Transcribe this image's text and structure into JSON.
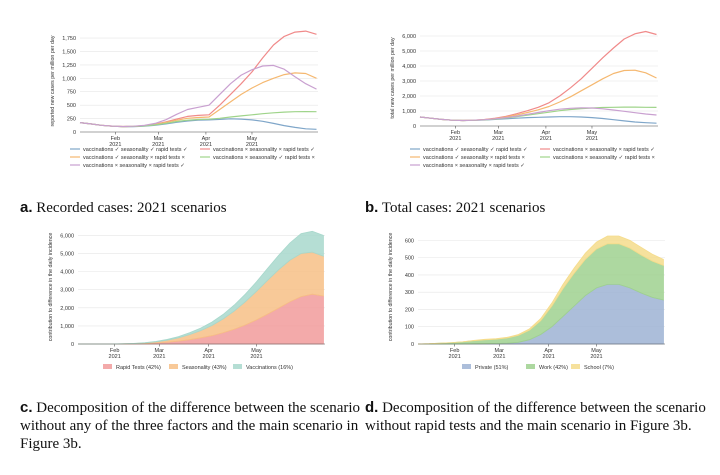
{
  "x_ticks": [
    {
      "month": "Feb",
      "year": "2021",
      "day": 31
    },
    {
      "month": "Mar",
      "year": "2021",
      "day": 59
    },
    {
      "month": "Apr",
      "year": "2021",
      "day": 90
    },
    {
      "month": "May",
      "year": "2021",
      "day": 120
    }
  ],
  "captions": {
    "a": {
      "label": "a.",
      "text": "Recorded cases: 2021 scenarios"
    },
    "b": {
      "label": "b.",
      "text": "Total cases: 2021 scenarios"
    },
    "c": {
      "label": "c.",
      "text": "Decomposition of the difference between the scenario without any of the three factors and the main scenario in Figure 3b."
    },
    "d": {
      "label": "d.",
      "text": "Decomposition of the difference between the scenario without rapid tests and the main scenario in Figure 3b."
    }
  },
  "chart_data": [
    {
      "id": "a",
      "type": "line",
      "ylabel": "reported new cases per million per day",
      "xlim": [
        8,
        163
      ],
      "ylim": [
        0,
        1900
      ],
      "yticks": [
        0,
        250,
        500,
        750,
        1000,
        1250,
        1500,
        1750
      ],
      "ytick_labels": [
        "0",
        "250",
        "500",
        "750",
        "1,000",
        "1,250",
        "1,500",
        "1,750"
      ],
      "legend_position": "bottom",
      "x": [
        8,
        15,
        22,
        29,
        36,
        43,
        50,
        57,
        64,
        71,
        78,
        85,
        92,
        99,
        106,
        113,
        120,
        127,
        134,
        141,
        148,
        155,
        162
      ],
      "series": [
        {
          "name": "vaccinations ✓ seasonality ✓ rapid tests ✓",
          "color": "#7fa6c9",
          "values": [
            175,
            150,
            125,
            108,
            98,
            100,
            108,
            125,
            150,
            180,
            205,
            220,
            225,
            235,
            245,
            240,
            225,
            200,
            160,
            120,
            85,
            60,
            50
          ]
        },
        {
          "name": "vaccinations × seasonality × rapid tests ✓",
          "color": "#f08a8a",
          "values": [
            175,
            150,
            125,
            110,
            100,
            105,
            120,
            145,
            190,
            240,
            290,
            310,
            320,
            500,
            700,
            900,
            1120,
            1380,
            1620,
            1780,
            1860,
            1880,
            1820
          ]
        },
        {
          "name": "vaccinations ✓ seasonality × rapid tests ×",
          "color": "#f5b870",
          "values": [
            175,
            150,
            125,
            110,
            102,
            106,
            118,
            140,
            180,
            220,
            255,
            270,
            280,
            420,
            560,
            700,
            820,
            920,
            1000,
            1070,
            1100,
            1090,
            1000
          ]
        },
        {
          "name": "vaccinations × seasonality ✓ rapid tests ×",
          "color": "#9fd48a",
          "values": [
            175,
            150,
            125,
            108,
            100,
            104,
            114,
            132,
            162,
            195,
            220,
            232,
            238,
            255,
            280,
            300,
            320,
            340,
            358,
            370,
            378,
            380,
            378
          ]
        },
        {
          "name": "vaccinations × seasonality × rapid tests ✓",
          "color": "#c9a0d0",
          "values": [
            175,
            150,
            125,
            110,
            102,
            108,
            125,
            160,
            230,
            330,
            420,
            460,
            500,
            700,
            900,
            1060,
            1160,
            1230,
            1240,
            1170,
            1030,
            900,
            800
          ]
        }
      ]
    },
    {
      "id": "b",
      "type": "line",
      "ylabel": "total new cases per million per day",
      "xlim": [
        8,
        163
      ],
      "ylim": [
        0,
        6400
      ],
      "yticks": [
        0,
        1000,
        2000,
        3000,
        4000,
        5000,
        6000
      ],
      "ytick_labels": [
        "0",
        "1,000",
        "2,000",
        "3,000",
        "4,000",
        "5,000",
        "6,000"
      ],
      "legend_position": "bottom",
      "x": [
        8,
        15,
        22,
        29,
        36,
        43,
        50,
        57,
        64,
        71,
        78,
        85,
        92,
        99,
        106,
        113,
        120,
        127,
        134,
        141,
        148,
        155,
        162
      ],
      "series": [
        {
          "name": "vaccinations ✓ seasonality ✓ rapid tests ✓",
          "color": "#7fa6c9",
          "values": [
            600,
            520,
            440,
            390,
            370,
            380,
            400,
            440,
            480,
            520,
            560,
            580,
            600,
            620,
            620,
            600,
            560,
            500,
            420,
            340,
            270,
            220,
            190
          ]
        },
        {
          "name": "vaccinations × seasonality × rapid tests ✓",
          "color": "#f08a8a",
          "values": [
            600,
            520,
            440,
            390,
            370,
            390,
            430,
            520,
            650,
            820,
            1020,
            1250,
            1550,
            2000,
            2550,
            3150,
            3850,
            4550,
            5200,
            5800,
            6150,
            6300,
            6100
          ]
        },
        {
          "name": "vaccinations ✓ seasonality × rapid tests ×",
          "color": "#f5b870",
          "values": [
            600,
            520,
            440,
            390,
            370,
            385,
            420,
            490,
            600,
            740,
            900,
            1080,
            1300,
            1600,
            1950,
            2350,
            2750,
            3150,
            3500,
            3700,
            3720,
            3550,
            3200
          ]
        },
        {
          "name": "vaccinations × seasonality ✓ rapid tests ×",
          "color": "#9fd48a",
          "values": [
            600,
            520,
            440,
            390,
            370,
            380,
            410,
            460,
            530,
            620,
            720,
            820,
            920,
            1020,
            1100,
            1160,
            1200,
            1230,
            1250,
            1260,
            1260,
            1250,
            1240
          ]
        },
        {
          "name": "vaccinations × seasonality × rapid tests ✓",
          "color": "#c9a0d0",
          "values": [
            600,
            520,
            440,
            390,
            370,
            385,
            420,
            480,
            560,
            660,
            780,
            900,
            1020,
            1120,
            1180,
            1210,
            1200,
            1150,
            1070,
            980,
            890,
            800,
            730
          ]
        }
      ]
    },
    {
      "id": "c",
      "type": "area",
      "ylabel": "contribution to difference in the daily incidence",
      "xlim": [
        8,
        163
      ],
      "ylim": [
        0,
        6300
      ],
      "yticks": [
        0,
        1000,
        2000,
        3000,
        4000,
        5000,
        6000
      ],
      "ytick_labels": [
        "0",
        "1,000",
        "2,000",
        "3,000",
        "4,000",
        "5,000",
        "6,000"
      ],
      "legend_position": "bottom",
      "x": [
        8,
        15,
        22,
        29,
        36,
        43,
        50,
        57,
        64,
        71,
        78,
        85,
        92,
        99,
        106,
        113,
        120,
        127,
        134,
        141,
        148,
        155,
        162
      ],
      "series": [
        {
          "name": "Rapid Tests (42%)",
          "color": "#f19b9b",
          "values": [
            0,
            0,
            0,
            0,
            5,
            15,
            30,
            60,
            100,
            160,
            240,
            340,
            460,
            620,
            820,
            1050,
            1330,
            1650,
            1990,
            2330,
            2620,
            2750,
            2650
          ]
        },
        {
          "name": "Seasonality (43%)",
          "color": "#f7bf86",
          "values": [
            0,
            0,
            0,
            0,
            5,
            15,
            30,
            60,
            110,
            180,
            280,
            400,
            560,
            760,
            1000,
            1280,
            1580,
            1870,
            2120,
            2300,
            2380,
            2330,
            2200
          ]
        },
        {
          "name": "Vaccinations (16%)",
          "color": "#a8d8cc",
          "values": [
            0,
            0,
            0,
            0,
            2,
            5,
            12,
            25,
            45,
            70,
            100,
            140,
            190,
            250,
            330,
            420,
            530,
            660,
            800,
            950,
            1100,
            1150,
            1150
          ]
        }
      ]
    },
    {
      "id": "d",
      "type": "area",
      "ylabel": "contribution to difference in the daily incidence",
      "xlim": [
        8,
        163
      ],
      "ylim": [
        0,
        660
      ],
      "yticks": [
        0,
        100,
        200,
        300,
        400,
        500,
        600
      ],
      "ytick_labels": [
        "0",
        "100",
        "200",
        "300",
        "400",
        "500",
        "600"
      ],
      "legend_position": "bottom",
      "x": [
        8,
        15,
        22,
        29,
        36,
        43,
        50,
        57,
        64,
        71,
        78,
        85,
        92,
        99,
        106,
        113,
        120,
        127,
        134,
        141,
        148,
        155,
        162
      ],
      "series": [
        {
          "name": "Private (51%)",
          "color": "#9db3d3",
          "values": [
            0,
            0,
            0,
            0,
            0,
            1,
            2,
            3,
            5,
            10,
            25,
            55,
            100,
            160,
            220,
            280,
            325,
            345,
            345,
            325,
            295,
            270,
            255
          ]
        },
        {
          "name": "Work (42%)",
          "color": "#9fd18f",
          "values": [
            0,
            2,
            5,
            8,
            12,
            18,
            22,
            25,
            30,
            40,
            55,
            80,
            120,
            160,
            190,
            210,
            225,
            235,
            235,
            230,
            220,
            210,
            200
          ]
        },
        {
          "name": "School (7%)",
          "color": "#f5dc8c",
          "values": [
            0,
            0,
            0,
            0,
            1,
            2,
            3,
            3,
            4,
            5,
            8,
            12,
            18,
            25,
            30,
            35,
            40,
            45,
            45,
            45,
            45,
            40,
            35
          ]
        }
      ]
    }
  ]
}
